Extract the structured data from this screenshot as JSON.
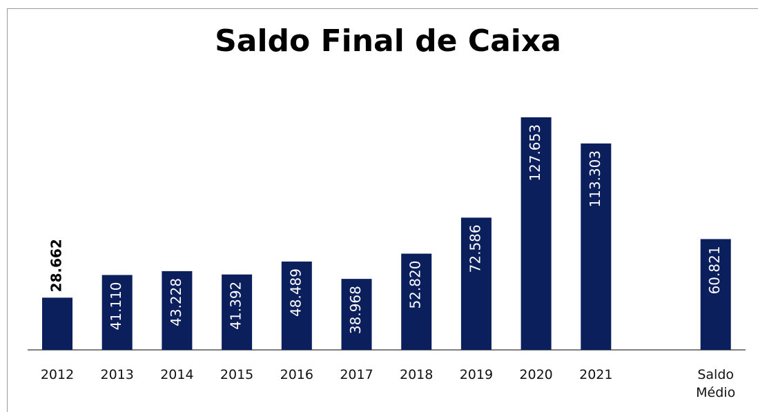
{
  "chart_data": {
    "type": "bar",
    "title": "Saldo Final de Caixa",
    "categories": [
      "2012",
      "2013",
      "2014",
      "2015",
      "2016",
      "2017",
      "2018",
      "2019",
      "2020",
      "2021",
      null,
      "Saldo Médio"
    ],
    "values": [
      28662,
      41110,
      43228,
      41392,
      48489,
      38968,
      52820,
      72586,
      127653,
      113303,
      null,
      60821
    ],
    "value_labels": [
      "28.662",
      "41.110",
      "43.228",
      "41.392",
      "48.489",
      "38.968",
      "52.820",
      "72.586",
      "127.653",
      "113.303",
      null,
      "60.821"
    ],
    "color": "#0a1f5c"
  }
}
